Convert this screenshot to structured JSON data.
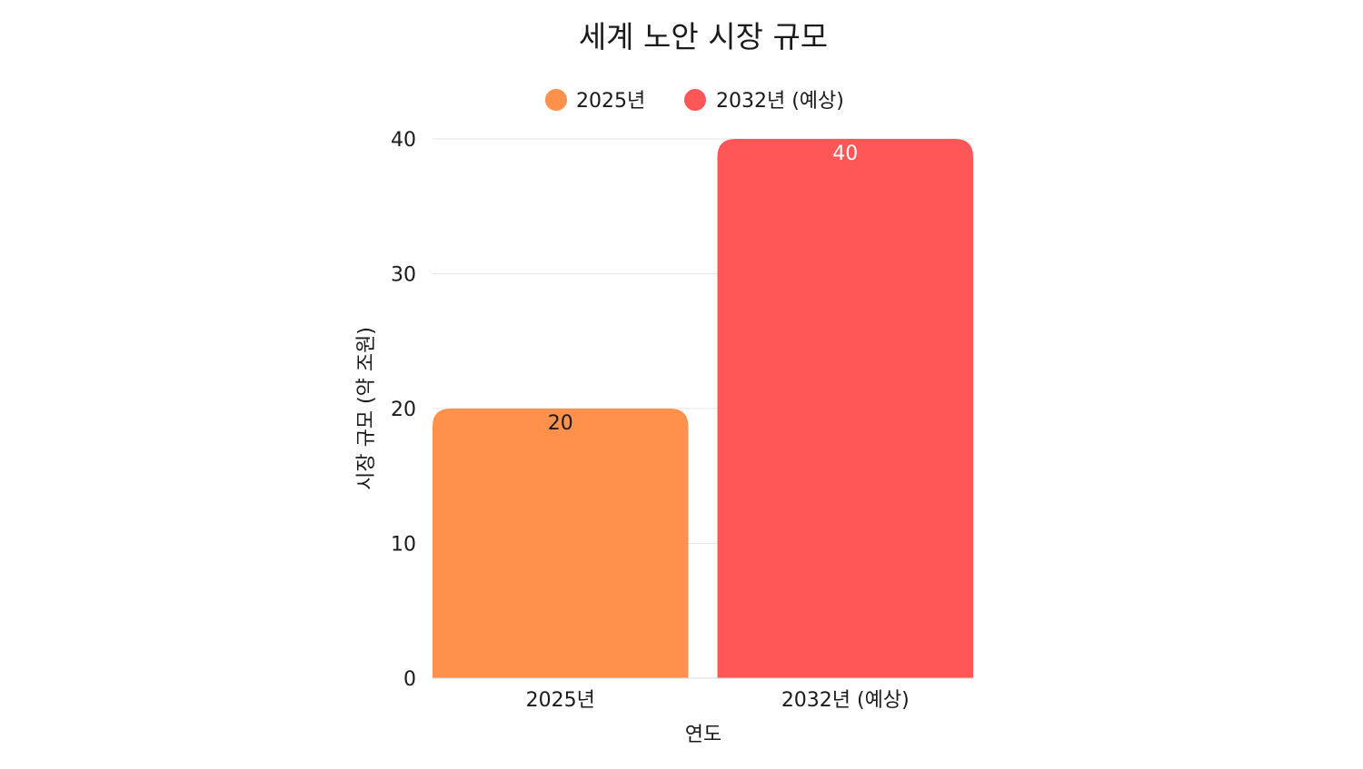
{
  "chart_data": {
    "type": "bar",
    "title": "세계 노안 시장 규모",
    "xlabel": "연도",
    "ylabel": "시장 규모 (약 조원)",
    "categories": [
      "2025년",
      "2032년 (예상)"
    ],
    "values": [
      20,
      40
    ],
    "colors": [
      "#FF914D",
      "#FF5757"
    ],
    "data_label_colors": [
      "#1a1a1a",
      "#ffffff"
    ],
    "legend": {
      "placement": "top-center",
      "entries": [
        "2025년",
        "2032년 (예상)"
      ]
    },
    "ylim": [
      0,
      40
    ],
    "yticks": [
      0,
      10,
      20,
      30,
      40
    ],
    "grid": true
  }
}
